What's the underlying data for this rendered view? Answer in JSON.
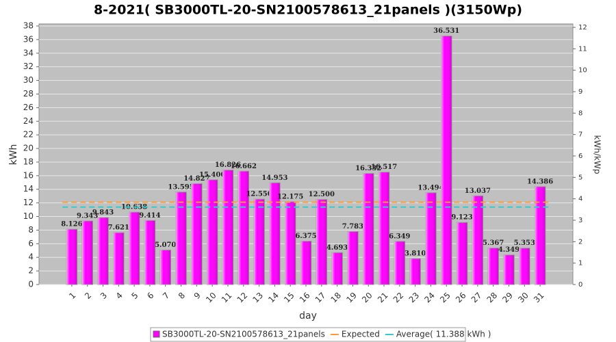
{
  "chart_data": {
    "type": "bar",
    "title": "8-2021( SB3000TL-20-SN2100578613_21panels )(3150Wp)",
    "xlabel": "day",
    "ylabel": "kWh",
    "y2label": "kWh/kWp",
    "categories": [
      "1",
      "2",
      "3",
      "4",
      "5",
      "6",
      "7",
      "8",
      "9",
      "10",
      "11",
      "12",
      "13",
      "14",
      "15",
      "16",
      "17",
      "18",
      "19",
      "20",
      "21",
      "22",
      "23",
      "24",
      "25",
      "26",
      "27",
      "28",
      "29",
      "30",
      "31"
    ],
    "series": [
      {
        "name": "SB3000TL-20-SN2100578613_21panels",
        "color": "#ff00ff",
        "values": [
          8.126,
          9.343,
          9.843,
          7.621,
          10.638,
          9.414,
          5.07,
          13.595,
          14.827,
          15.4,
          16.826,
          16.662,
          12.55,
          14.953,
          12.175,
          6.375,
          12.5,
          4.693,
          7.783,
          16.332,
          16.517,
          6.349,
          3.81,
          13.494,
          36.531,
          9.123,
          13.037,
          5.367,
          4.349,
          5.353,
          14.386
        ],
        "value_labels": [
          "8.126",
          "9.343",
          "9.843",
          "7.621",
          "10.638",
          "9.414",
          "5.070",
          "13.595",
          "14.827",
          "15.400",
          "16.826",
          "16.662",
          "12.550",
          "14.953",
          "12.175",
          "6.375",
          "12.500",
          "4.693",
          "7.783",
          "16.332",
          "16.517",
          "6.349",
          "3.810",
          "13.494",
          "36.531",
          "9.123",
          "13.037",
          "5.367",
          "4.349",
          "5.353",
          "14.386"
        ]
      }
    ],
    "lines": [
      {
        "name": "Expected",
        "color": "#ff9933",
        "value": 12.1
      },
      {
        "name": "Average( 11.388 kWh )",
        "color": "#33cccc",
        "value": 11.388
      }
    ],
    "ylim": [
      0,
      38.3
    ],
    "yticks": [
      0,
      2,
      4,
      6,
      8,
      10,
      12,
      14,
      16,
      18,
      20,
      22,
      24,
      26,
      28,
      30,
      32,
      34,
      36,
      38
    ],
    "y2lim": [
      0,
      12.16
    ],
    "y2ticks": [
      0,
      1,
      2,
      3,
      4,
      5,
      6,
      7,
      8,
      9,
      10,
      11,
      12
    ],
    "grid": true
  }
}
